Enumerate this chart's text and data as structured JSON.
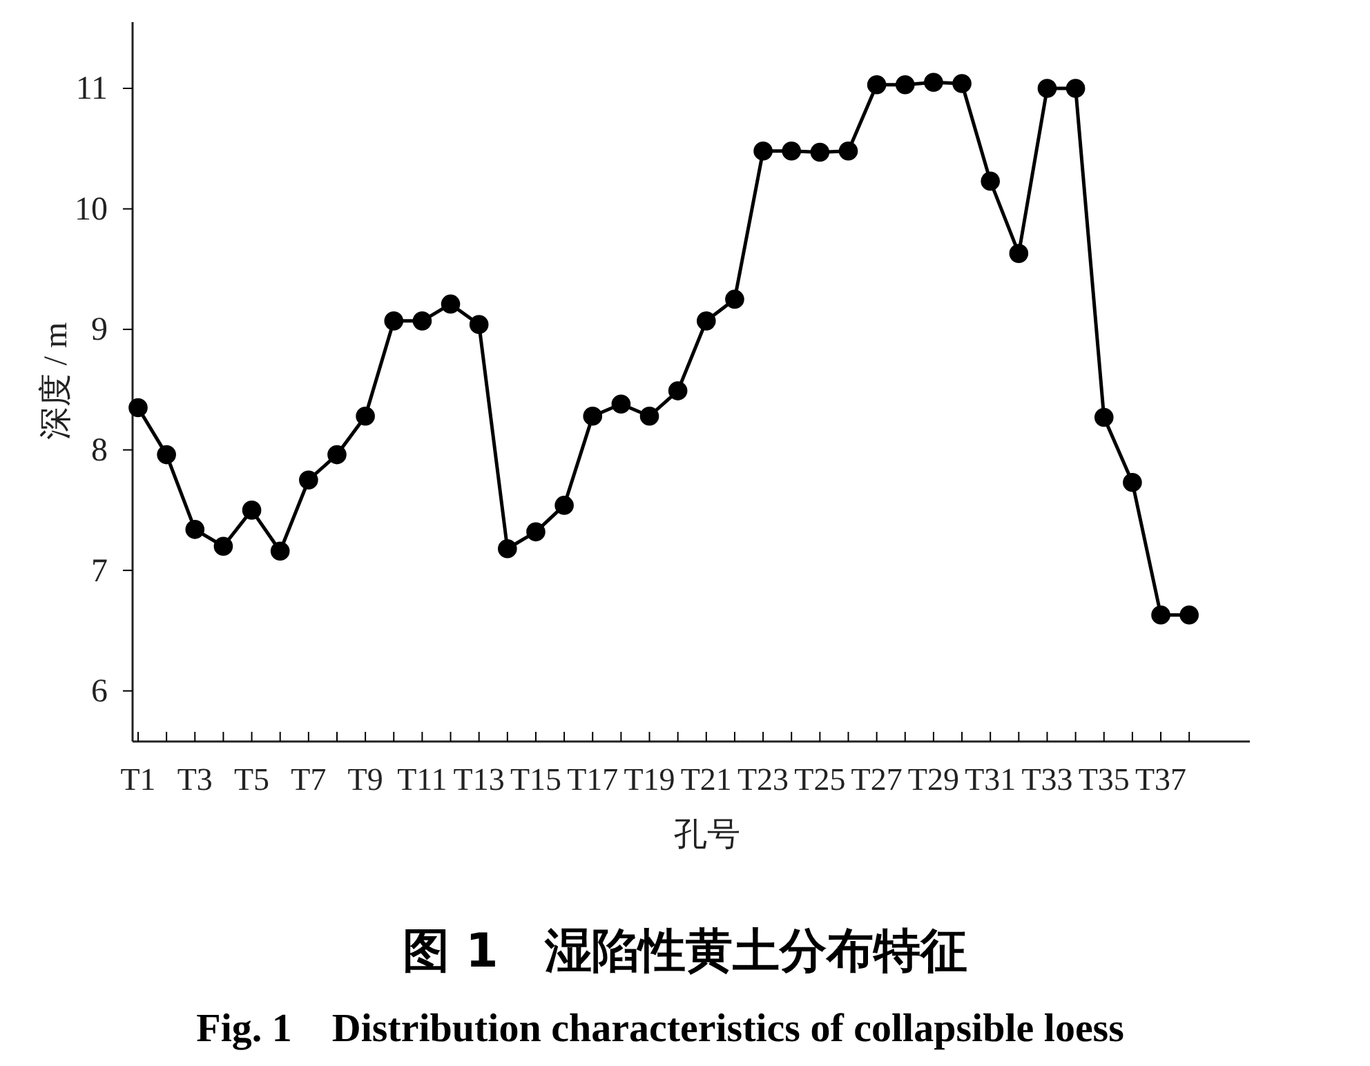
{
  "chart_data": {
    "type": "line",
    "title": "图 1　湿陷性黄土分布特征",
    "subtitle": "Fig. 1　Distribution characteristics of collapsible loess",
    "xlabel": "孔号",
    "ylabel": "深度 / m",
    "categories": [
      "T1",
      null,
      "T3",
      null,
      "T5",
      null,
      "T7",
      null,
      "T9",
      null,
      "T11",
      null,
      "T13",
      null,
      "T15",
      null,
      "T17",
      null,
      "T19",
      null,
      "T21",
      null,
      "T23",
      null,
      "T25",
      null,
      "T27",
      null,
      "T29",
      null,
      "T31",
      null,
      "T33",
      null,
      "T35",
      null,
      "T37",
      null
    ],
    "series": [
      {
        "color": "#000000",
        "values": [
          8.35,
          7.96,
          7.34,
          7.2,
          7.5,
          7.16,
          7.75,
          7.96,
          8.28,
          9.07,
          9.07,
          9.21,
          9.04,
          7.18,
          7.32,
          7.54,
          8.28,
          8.38,
          8.28,
          8.49,
          9.07,
          9.25,
          10.48,
          10.48,
          10.47,
          10.48,
          11.03,
          11.03,
          11.05,
          11.04,
          10.23,
          9.63,
          11.0,
          11.0,
          8.27,
          7.73,
          6.63,
          6.63
        ]
      }
    ],
    "ylim": [
      5.58,
      11.55
    ],
    "yticks": [
      6,
      7,
      8,
      9,
      10,
      11
    ],
    "marker": "circle",
    "line_style": "solid"
  }
}
